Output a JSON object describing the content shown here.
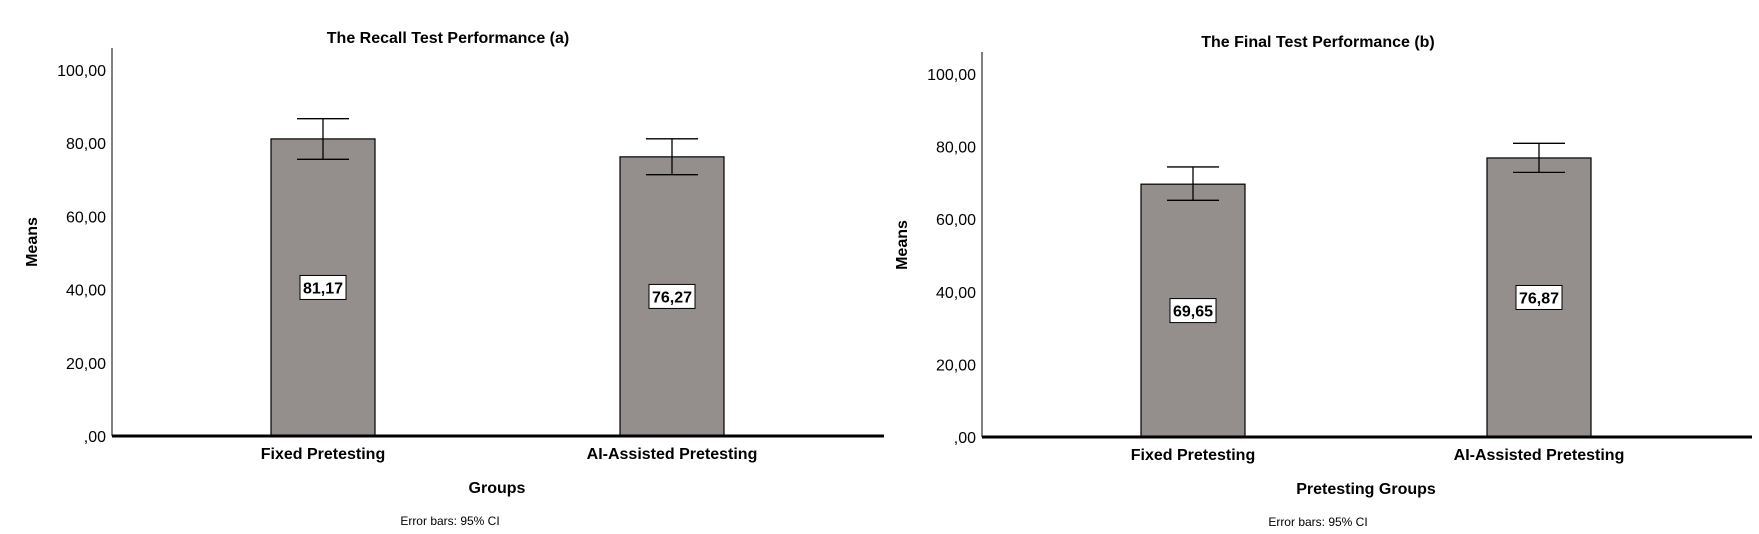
{
  "chart_data": [
    {
      "type": "bar",
      "title": "The Recall Test Performance (a)",
      "xlabel": "Groups",
      "ylabel": "Means",
      "note": "Error bars: 95% CI",
      "ylim": [
        0,
        100
      ],
      "yticks": [
        ",00",
        "20,00",
        "40,00",
        "60,00",
        "80,00",
        "100,00"
      ],
      "categories": [
        "Fixed Pretesting",
        "AI-Assisted Pretesting"
      ],
      "values": [
        81.17,
        76.27
      ],
      "value_labels": [
        "81,17",
        "76,27"
      ],
      "ci_low": [
        75.6,
        71.4
      ],
      "ci_high": [
        86.7,
        81.2
      ],
      "bar_color": "#948f8d"
    },
    {
      "type": "bar",
      "title": "The Final Test Performance (b)",
      "xlabel": "Pretesting Groups",
      "ylabel": "Means",
      "note": "Error bars: 95% CI",
      "ylim": [
        0,
        100
      ],
      "yticks": [
        ",00",
        "20,00",
        "40,00",
        "60,00",
        "80,00",
        "100,00"
      ],
      "categories": [
        "Fixed Pretesting",
        "AI-Assisted Pretesting"
      ],
      "values": [
        69.65,
        76.87
      ],
      "value_labels": [
        "69,65",
        "76,87"
      ],
      "ci_low": [
        65.2,
        72.9
      ],
      "ci_high": [
        74.4,
        80.9
      ],
      "bar_color": "#948f8d"
    }
  ]
}
